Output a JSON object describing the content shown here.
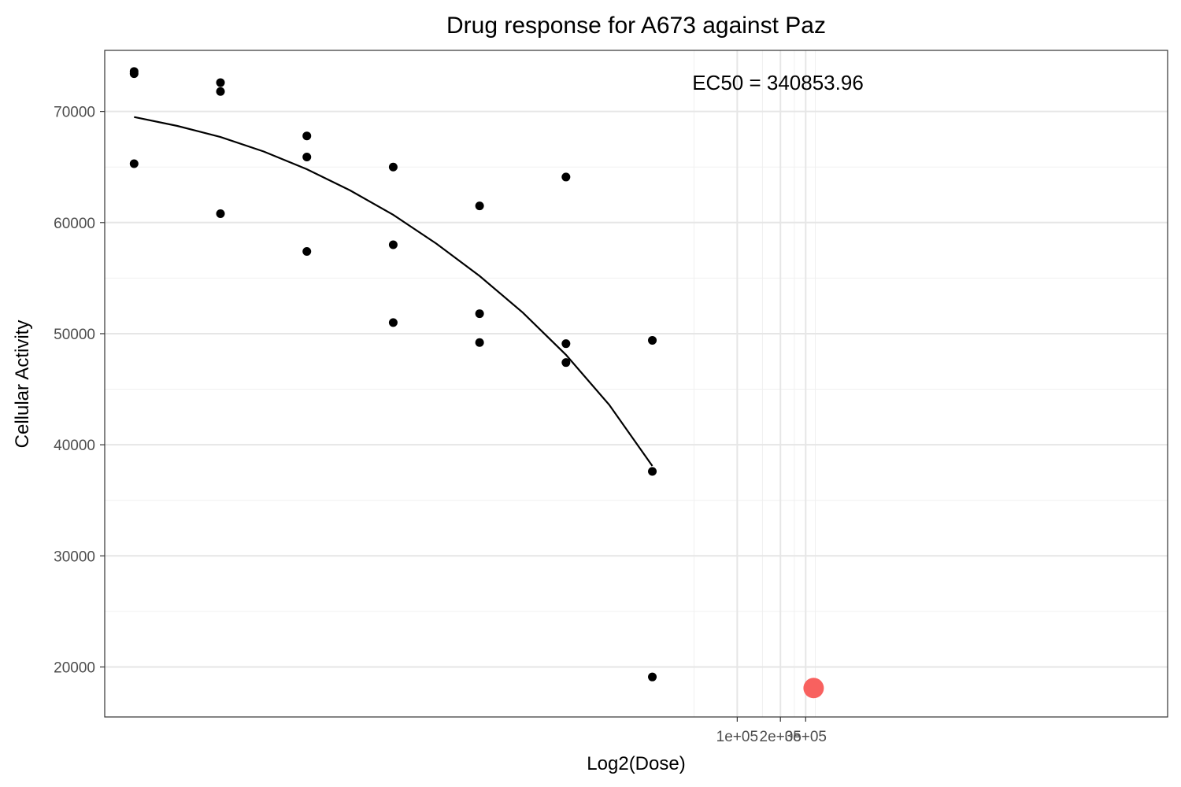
{
  "chart_data": {
    "type": "scatter",
    "title": "Drug response for A673 against Paz",
    "xlabel": "Log2(Dose)",
    "ylabel": "Cellular Activity",
    "x_scale": "log10",
    "xlim": [
      3.9,
      100000000
    ],
    "ylim": [
      15500,
      75500
    ],
    "grid": true,
    "legend": "none",
    "x_ticks": [
      {
        "value": 100000,
        "label": "1e+05"
      },
      {
        "value": 200000,
        "label": "2e+05"
      },
      {
        "value": 300000,
        "label": "3e+05"
      }
    ],
    "y_ticks": [
      {
        "value": 20000,
        "label": "20000"
      },
      {
        "value": 30000,
        "label": "30000"
      },
      {
        "value": 40000,
        "label": "40000"
      },
      {
        "value": 50000,
        "label": "50000"
      },
      {
        "value": 60000,
        "label": "60000"
      },
      {
        "value": 70000,
        "label": "70000"
      }
    ],
    "annotation": "EC50 = 340853.96",
    "series": [
      {
        "kind": "points",
        "color": "#000000",
        "points": [
          [
            6.25,
            73600
          ],
          [
            6.25,
            73400
          ],
          [
            6.25,
            65300
          ],
          [
            25,
            72600
          ],
          [
            25,
            71800
          ],
          [
            25,
            60800
          ],
          [
            100,
            67800
          ],
          [
            100,
            65900
          ],
          [
            100,
            57400
          ],
          [
            400,
            65000
          ],
          [
            400,
            58000
          ],
          [
            400,
            51000
          ],
          [
            1600,
            61500
          ],
          [
            1600,
            51800
          ],
          [
            1600,
            49200
          ],
          [
            6400,
            64100
          ],
          [
            6400,
            49100
          ],
          [
            6400,
            47400
          ],
          [
            25600,
            49400
          ],
          [
            25600,
            37600
          ],
          [
            25600,
            19100
          ]
        ]
      },
      {
        "kind": "curve",
        "color": "#000000",
        "points": [
          [
            6.25,
            69500
          ],
          [
            12.5,
            68700
          ],
          [
            25,
            67700
          ],
          [
            50,
            66400
          ],
          [
            100,
            64800
          ],
          [
            200,
            62900
          ],
          [
            400,
            60700
          ],
          [
            800,
            58100
          ],
          [
            1600,
            55200
          ],
          [
            3200,
            51900
          ],
          [
            6400,
            48100
          ],
          [
            12800,
            43600
          ],
          [
            25600,
            38100
          ]
        ]
      },
      {
        "kind": "ec50",
        "color": "#F8615F",
        "points": [
          [
            340853.96,
            18100
          ]
        ]
      }
    ]
  }
}
